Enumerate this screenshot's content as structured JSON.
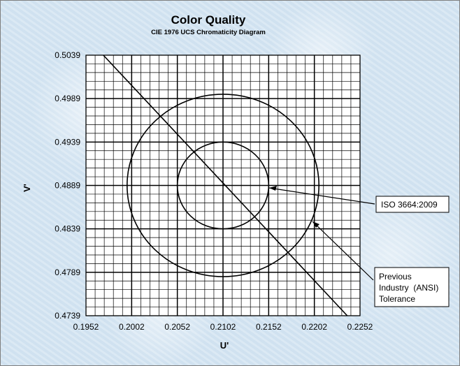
{
  "chart_data": {
    "type": "scatter",
    "title": "Color Quality",
    "subtitle": "CIE 1976 UCS Chromaticity Diagram",
    "xlabel": "U'",
    "ylabel": "V'",
    "xlim": [
      0.1952,
      0.2252
    ],
    "ylim": [
      0.4739,
      0.5039
    ],
    "xticks": [
      "0.1952",
      "0.2002",
      "0.2052",
      "0.2102",
      "0.2152",
      "0.2202",
      "0.2252"
    ],
    "yticks": [
      "0.4739",
      "0.4789",
      "0.4839",
      "0.4889",
      "0.4939",
      "0.4989",
      "0.5039"
    ],
    "minor_step": 0.001,
    "grid": true,
    "line": {
      "x": [
        0.1971,
        0.2238
      ],
      "y": [
        0.5039,
        0.4739
      ]
    },
    "circles": [
      {
        "label": "ISO 3664:2009",
        "center": [
          0.2102,
          0.4889
        ],
        "radius": 0.005
      },
      {
        "label": "Previous Industry (ANSI) Tolerance",
        "center": [
          0.2102,
          0.4889
        ],
        "radius": 0.0105
      }
    ]
  },
  "callouts": {
    "iso_text": "ISO 3664:2009",
    "ansi_lines": [
      "Previous",
      "Industry  (ANSI)",
      "Tolerance"
    ]
  },
  "colors": {
    "background": "#d6e6f3",
    "plot_area": "#ffffff",
    "lines": "#000000"
  }
}
